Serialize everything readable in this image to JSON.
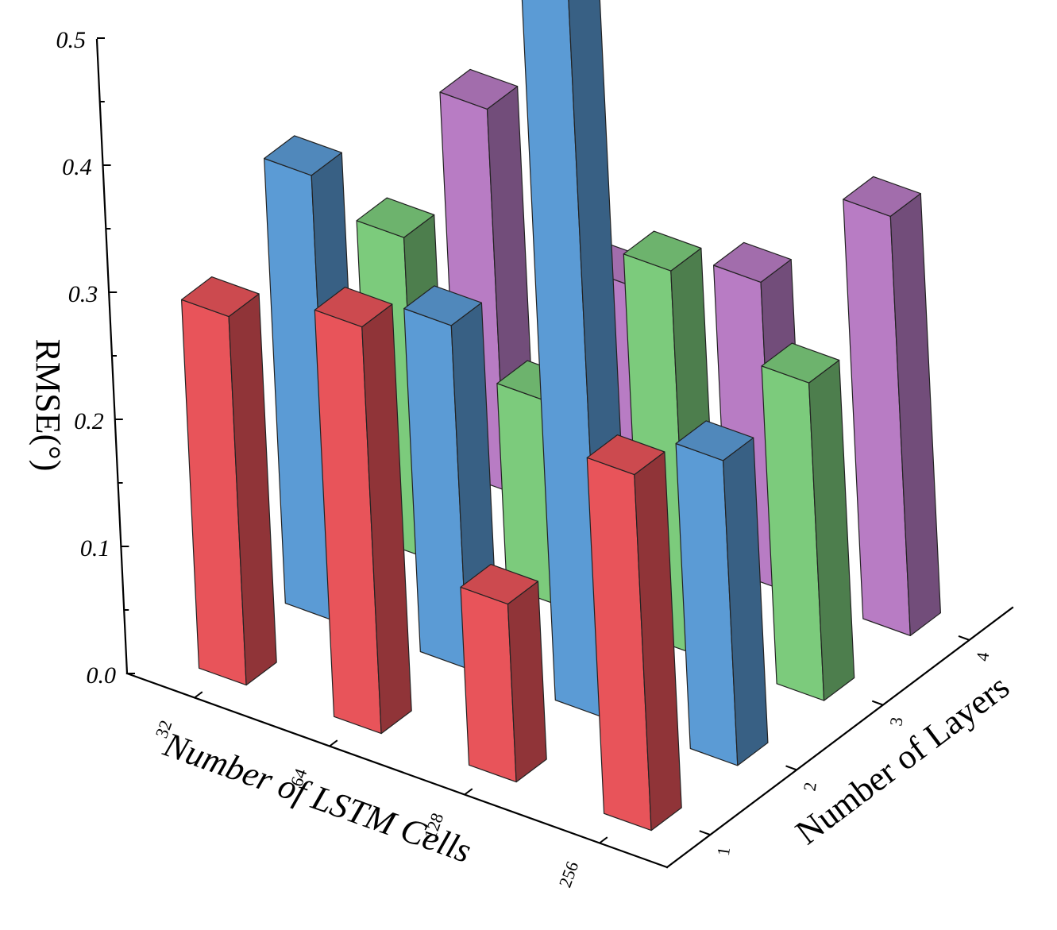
{
  "chart_data": {
    "type": "bar3d",
    "x_axis": {
      "label": "Number of LSTM Cells",
      "categories": [
        "32",
        "64",
        "128",
        "256"
      ]
    },
    "y_axis": {
      "label": "Number of Layers",
      "categories": [
        "1",
        "2",
        "3",
        "4"
      ]
    },
    "z_axis": {
      "label": "RMSE(°)",
      "ticks": [
        "0.0",
        "0.1",
        "0.2",
        "0.3",
        "0.4",
        "0.5"
      ],
      "range": [
        0,
        0.5
      ]
    },
    "series": [
      {
        "layers": "1",
        "color": "#e8545a",
        "values": [
          0.29,
          0.32,
          0.14,
          0.28
        ]
      },
      {
        "layers": "2",
        "color": "#5b9bd5",
        "values": [
          0.35,
          0.27,
          0.57,
          0.24
        ]
      },
      {
        "layers": "3",
        "color": "#7ccb7c",
        "values": [
          0.25,
          0.16,
          0.3,
          0.25
        ]
      },
      {
        "layers": "4",
        "color": "#b87cc4",
        "values": [
          0.3,
          0.2,
          0.24,
          0.33
        ]
      }
    ]
  }
}
